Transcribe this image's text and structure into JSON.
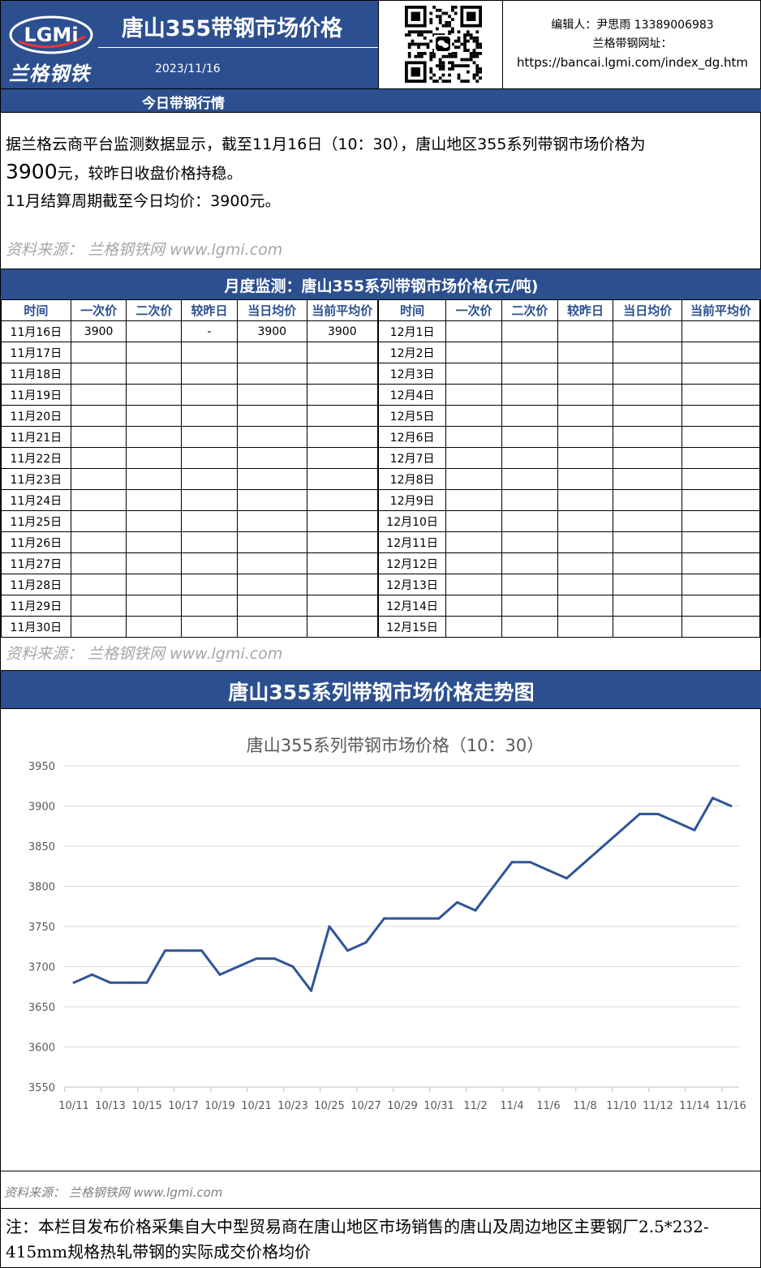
{
  "header": {
    "logo_text": "LGMi",
    "logo_cn": "兰格钢铁",
    "title": "唐山355带钢市场价格",
    "date": "2023/11/16",
    "editor_line": "编辑人：尹思雨 13389006983",
    "site_label": "兰格带钢网址：",
    "site_url": "https://bancai.lgmi.com/index_dg.htm"
  },
  "today_bar": "今日带钢行情",
  "summary": {
    "line1": "据兰格云商平台监测数据显示，截至11月16日（10：30），唐山地区355系列带钢市场价格为",
    "price": "3900",
    "line2_rest": "元，较昨日收盘价格持稳。",
    "line3": "11月结算周期截至今日均价：3900元。"
  },
  "source_text": "资料来源： 兰格钢铁网 www.lgmi.com",
  "monthly_bar": "月度监测：唐山355系列带钢市场价格(元/吨)",
  "table": {
    "headers": [
      "时间",
      "一次价",
      "二次价",
      "较昨日",
      "当日均价",
      "当前平均价",
      "时间",
      "一次价",
      "二次价",
      "较昨日",
      "当日均价",
      "当前平均价"
    ],
    "rows": [
      [
        "11月16日",
        "3900",
        "",
        "-",
        "3900",
        "3900",
        "12月1日",
        "",
        "",
        "",
        "",
        ""
      ],
      [
        "11月17日",
        "",
        "",
        "",
        "",
        "",
        "12月2日",
        "",
        "",
        "",
        "",
        ""
      ],
      [
        "11月18日",
        "",
        "",
        "",
        "",
        "",
        "12月3日",
        "",
        "",
        "",
        "",
        ""
      ],
      [
        "11月19日",
        "",
        "",
        "",
        "",
        "",
        "12月4日",
        "",
        "",
        "",
        "",
        ""
      ],
      [
        "11月20日",
        "",
        "",
        "",
        "",
        "",
        "12月5日",
        "",
        "",
        "",
        "",
        ""
      ],
      [
        "11月21日",
        "",
        "",
        "",
        "",
        "",
        "12月6日",
        "",
        "",
        "",
        "",
        ""
      ],
      [
        "11月22日",
        "",
        "",
        "",
        "",
        "",
        "12月7日",
        "",
        "",
        "",
        "",
        ""
      ],
      [
        "11月23日",
        "",
        "",
        "",
        "",
        "",
        "12月8日",
        "",
        "",
        "",
        "",
        ""
      ],
      [
        "11月24日",
        "",
        "",
        "",
        "",
        "",
        "12月9日",
        "",
        "",
        "",
        "",
        ""
      ],
      [
        "11月25日",
        "",
        "",
        "",
        "",
        "",
        "12月10日",
        "",
        "",
        "",
        "",
        ""
      ],
      [
        "11月26日",
        "",
        "",
        "",
        "",
        "",
        "12月11日",
        "",
        "",
        "",
        "",
        ""
      ],
      [
        "11月27日",
        "",
        "",
        "",
        "",
        "",
        "12月12日",
        "",
        "",
        "",
        "",
        ""
      ],
      [
        "11月28日",
        "",
        "",
        "",
        "",
        "",
        "12月13日",
        "",
        "",
        "",
        "",
        ""
      ],
      [
        "11月29日",
        "",
        "",
        "",
        "",
        "",
        "12月14日",
        "",
        "",
        "",
        "",
        ""
      ],
      [
        "11月30日",
        "",
        "",
        "",
        "",
        "",
        "12月15日",
        "",
        "",
        "",
        "",
        ""
      ]
    ]
  },
  "trend_bar": "唐山355系列带钢市场价格走势图",
  "chart_data": {
    "type": "line",
    "title": "唐山355系列带钢市场价格（10：30）",
    "xlabel": "",
    "ylabel": "",
    "ylim": [
      3550,
      3950
    ],
    "yticks": [
      3550,
      3600,
      3650,
      3700,
      3750,
      3800,
      3850,
      3900,
      3950
    ],
    "x_tick_labels": [
      "10/11",
      "10/13",
      "10/15",
      "10/17",
      "10/19",
      "10/21",
      "10/23",
      "10/25",
      "10/27",
      "10/29",
      "10/31",
      "11/2",
      "11/4",
      "11/6",
      "11/8",
      "11/10",
      "11/12",
      "11/14",
      "11/16"
    ],
    "grid": true,
    "color": "#2f5597",
    "series": [
      {
        "x": [
          "10/11",
          "10/12",
          "10/13",
          "10/14",
          "10/15",
          "10/16",
          "10/17",
          "10/18",
          "10/19",
          "10/20",
          "10/21",
          "10/22",
          "10/23",
          "10/24",
          "10/25",
          "10/26",
          "10/27",
          "10/28",
          "10/29",
          "10/30",
          "10/31",
          "11/1",
          "11/2",
          "11/3",
          "11/4",
          "11/5",
          "11/6",
          "11/7",
          "11/8",
          "11/9",
          "11/10",
          "11/11",
          "11/12",
          "11/13",
          "11/14",
          "11/15",
          "11/16"
        ],
        "values": [
          3680,
          3690,
          3680,
          3680,
          3680,
          3720,
          3720,
          3720,
          3690,
          3700,
          3710,
          3710,
          3700,
          3670,
          3750,
          3720,
          3730,
          3760,
          3760,
          3760,
          3760,
          3780,
          3770,
          3800,
          3830,
          3830,
          3820,
          3810,
          3830,
          3850,
          3870,
          3890,
          3890,
          3880,
          3870,
          3910,
          3900
        ]
      }
    ]
  },
  "source_text2": "资料来源： 兰格钢铁网 www.lgmi.com",
  "note": "注：本栏目发布价格采集自大中型贸易商在唐山地区市场销售的唐山及周边地区主要钢厂2.5*232-415mm规格热轧带钢的实际成交价格均价"
}
